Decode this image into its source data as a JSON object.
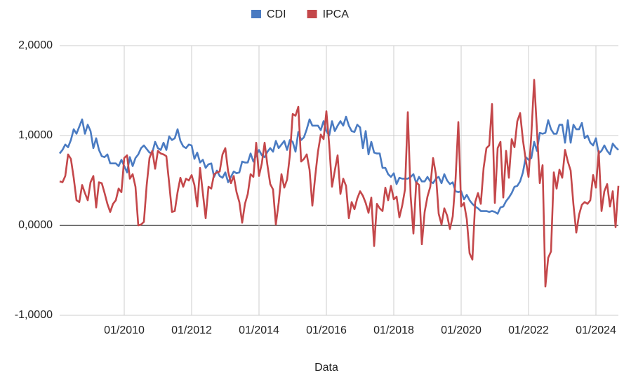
{
  "chart_data": {
    "type": "line",
    "x_label": "Data",
    "x": [
      "02/2008",
      "03/2008",
      "04/2008",
      "05/2008",
      "06/2008",
      "07/2008",
      "08/2008",
      "09/2008",
      "10/2008",
      "11/2008",
      "12/2008",
      "01/2009",
      "02/2009",
      "03/2009",
      "04/2009",
      "05/2009",
      "06/2009",
      "07/2009",
      "08/2009",
      "09/2009",
      "10/2009",
      "11/2009",
      "12/2009",
      "01/2010",
      "02/2010",
      "03/2010",
      "04/2010",
      "05/2010",
      "06/2010",
      "07/2010",
      "08/2010",
      "09/2010",
      "10/2010",
      "11/2010",
      "12/2010",
      "01/2011",
      "02/2011",
      "03/2011",
      "04/2011",
      "05/2011",
      "06/2011",
      "07/2011",
      "08/2011",
      "09/2011",
      "10/2011",
      "11/2011",
      "12/2011",
      "01/2012",
      "02/2012",
      "03/2012",
      "04/2012",
      "05/2012",
      "06/2012",
      "07/2012",
      "08/2012",
      "09/2012",
      "10/2012",
      "11/2012",
      "12/2012",
      "01/2013",
      "02/2013",
      "03/2013",
      "04/2013",
      "05/2013",
      "06/2013",
      "07/2013",
      "08/2013",
      "09/2013",
      "10/2013",
      "11/2013",
      "12/2013",
      "01/2014",
      "02/2014",
      "03/2014",
      "04/2014",
      "05/2014",
      "06/2014",
      "07/2014",
      "08/2014",
      "09/2014",
      "10/2014",
      "11/2014",
      "12/2014",
      "01/2015",
      "02/2015",
      "03/2015",
      "04/2015",
      "05/2015",
      "06/2015",
      "07/2015",
      "08/2015",
      "09/2015",
      "10/2015",
      "11/2015",
      "12/2015",
      "01/2016",
      "02/2016",
      "03/2016",
      "04/2016",
      "05/2016",
      "06/2016",
      "07/2016",
      "08/2016",
      "09/2016",
      "10/2016",
      "11/2016",
      "12/2016",
      "01/2017",
      "02/2017",
      "03/2017",
      "04/2017",
      "05/2017",
      "06/2017",
      "07/2017",
      "08/2017",
      "09/2017",
      "10/2017",
      "11/2017",
      "12/2017",
      "01/2018",
      "02/2018",
      "03/2018",
      "04/2018",
      "05/2018",
      "06/2018",
      "07/2018",
      "08/2018",
      "09/2018",
      "10/2018",
      "11/2018",
      "12/2018",
      "01/2019",
      "02/2019",
      "03/2019",
      "04/2019",
      "05/2019",
      "06/2019",
      "07/2019",
      "08/2019",
      "09/2019",
      "10/2019",
      "11/2019",
      "12/2019",
      "01/2020",
      "02/2020",
      "03/2020",
      "04/2020",
      "05/2020",
      "06/2020",
      "07/2020",
      "08/2020",
      "09/2020",
      "10/2020",
      "11/2020",
      "12/2020",
      "01/2021",
      "02/2021",
      "03/2021",
      "04/2021",
      "05/2021",
      "06/2021",
      "07/2021",
      "08/2021",
      "09/2021",
      "10/2021",
      "11/2021",
      "12/2021",
      "01/2022",
      "02/2022",
      "03/2022",
      "04/2022",
      "05/2022",
      "06/2022",
      "07/2022",
      "08/2022",
      "09/2022",
      "10/2022",
      "11/2022",
      "12/2022",
      "01/2023",
      "02/2023",
      "03/2023",
      "04/2023",
      "05/2023",
      "06/2023",
      "07/2023",
      "08/2023",
      "09/2023",
      "10/2023",
      "11/2023",
      "12/2023",
      "01/2024",
      "02/2024",
      "03/2024",
      "04/2024",
      "05/2024",
      "06/2024",
      "07/2024",
      "08/2024",
      "09/2024"
    ],
    "series": [
      {
        "name": "CDI",
        "color": "#4a7bc2",
        "values": [
          0.8,
          0.84,
          0.9,
          0.87,
          0.95,
          1.07,
          1.02,
          1.1,
          1.18,
          1.02,
          1.12,
          1.05,
          0.86,
          0.97,
          0.84,
          0.77,
          0.76,
          0.79,
          0.69,
          0.69,
          0.69,
          0.66,
          0.73,
          0.66,
          0.59,
          0.76,
          0.66,
          0.75,
          0.79,
          0.86,
          0.89,
          0.85,
          0.81,
          0.81,
          0.93,
          0.86,
          0.84,
          0.92,
          0.84,
          0.99,
          0.95,
          0.97,
          1.07,
          0.94,
          0.88,
          0.86,
          0.9,
          0.89,
          0.74,
          0.81,
          0.7,
          0.73,
          0.64,
          0.68,
          0.69,
          0.54,
          0.61,
          0.55,
          0.53,
          0.59,
          0.48,
          0.54,
          0.6,
          0.58,
          0.59,
          0.71,
          0.7,
          0.7,
          0.8,
          0.71,
          0.78,
          0.84,
          0.78,
          0.76,
          0.82,
          0.86,
          0.82,
          0.94,
          0.86,
          0.9,
          0.94,
          0.84,
          0.95,
          0.93,
          0.82,
          1.04,
          0.95,
          0.98,
          1.07,
          1.18,
          1.11,
          1.11,
          1.11,
          1.06,
          1.16,
          1.05,
          1.0,
          1.16,
          1.05,
          1.11,
          1.16,
          1.11,
          1.21,
          1.11,
          1.05,
          1.04,
          1.12,
          1.09,
          0.86,
          1.05,
          0.79,
          0.93,
          0.81,
          0.8,
          0.8,
          0.64,
          0.64,
          0.57,
          0.54,
          0.58,
          0.46,
          0.53,
          0.52,
          0.52,
          0.52,
          0.54,
          0.57,
          0.47,
          0.54,
          0.49,
          0.49,
          0.54,
          0.49,
          0.47,
          0.52,
          0.54,
          0.47,
          0.57,
          0.5,
          0.46,
          0.48,
          0.38,
          0.37,
          0.38,
          0.29,
          0.34,
          0.28,
          0.24,
          0.21,
          0.19,
          0.16,
          0.16,
          0.16,
          0.15,
          0.16,
          0.15,
          0.13,
          0.2,
          0.21,
          0.27,
          0.31,
          0.36,
          0.43,
          0.44,
          0.49,
          0.59,
          0.76,
          0.73,
          0.75,
          0.93,
          0.83,
          1.03,
          1.02,
          1.03,
          1.17,
          1.07,
          1.02,
          1.02,
          1.12,
          1.12,
          0.92,
          1.17,
          0.92,
          1.12,
          1.07,
          1.07,
          1.14,
          0.97,
          1.0,
          0.92,
          0.89,
          0.97,
          0.8,
          0.83,
          0.89,
          0.83,
          0.79,
          0.91,
          0.87,
          0.84
        ]
      },
      {
        "name": "IPCA",
        "color": "#c4474a",
        "values": [
          0.49,
          0.48,
          0.55,
          0.79,
          0.74,
          0.53,
          0.28,
          0.26,
          0.45,
          0.36,
          0.28,
          0.48,
          0.55,
          0.2,
          0.48,
          0.47,
          0.36,
          0.24,
          0.15,
          0.24,
          0.28,
          0.41,
          0.37,
          0.75,
          0.78,
          0.52,
          0.57,
          0.43,
          0.0,
          0.01,
          0.04,
          0.45,
          0.75,
          0.83,
          0.63,
          0.83,
          0.8,
          0.79,
          0.77,
          0.47,
          0.15,
          0.16,
          0.37,
          0.53,
          0.43,
          0.52,
          0.5,
          0.56,
          0.45,
          0.21,
          0.64,
          0.36,
          0.08,
          0.43,
          0.41,
          0.57,
          0.59,
          0.6,
          0.79,
          0.86,
          0.6,
          0.47,
          0.55,
          0.37,
          0.26,
          0.03,
          0.24,
          0.35,
          0.57,
          0.54,
          0.92,
          0.55,
          0.69,
          0.92,
          0.67,
          0.46,
          0.4,
          0.01,
          0.25,
          0.57,
          0.42,
          0.51,
          0.78,
          1.24,
          1.22,
          1.32,
          0.71,
          0.74,
          0.79,
          0.62,
          0.22,
          0.54,
          0.82,
          1.01,
          0.96,
          1.27,
          0.9,
          0.43,
          0.61,
          0.78,
          0.35,
          0.52,
          0.44,
          0.08,
          0.26,
          0.18,
          0.3,
          0.38,
          0.33,
          0.25,
          0.14,
          0.31,
          -0.23,
          0.24,
          0.19,
          0.16,
          0.42,
          0.28,
          0.44,
          0.29,
          0.32,
          0.09,
          0.22,
          0.4,
          1.26,
          0.33,
          -0.09,
          0.48,
          0.45,
          -0.21,
          0.15,
          0.32,
          0.43,
          0.75,
          0.57,
          0.13,
          0.01,
          0.19,
          0.11,
          -0.04,
          0.1,
          0.51,
          1.15,
          0.21,
          0.25,
          0.07,
          -0.31,
          -0.38,
          0.26,
          0.36,
          0.24,
          0.64,
          0.86,
          0.89,
          1.35,
          0.25,
          0.86,
          0.93,
          0.31,
          0.83,
          0.53,
          0.96,
          0.87,
          1.16,
          1.25,
          0.95,
          0.73,
          0.54,
          1.01,
          1.62,
          1.06,
          0.47,
          0.67,
          -0.68,
          -0.36,
          -0.29,
          0.59,
          0.41,
          0.62,
          0.53,
          0.84,
          0.71,
          0.61,
          0.23,
          -0.08,
          0.12,
          0.23,
          0.26,
          0.24,
          0.28,
          0.56,
          0.42,
          0.83,
          0.16,
          0.38,
          0.46,
          0.21,
          0.38,
          -0.02,
          0.44
        ]
      }
    ],
    "xlim": [
      "02/2008",
      "09/2024"
    ],
    "xticks": [
      "01/2010",
      "01/2012",
      "01/2014",
      "01/2016",
      "01/2018",
      "01/2020",
      "01/2022",
      "01/2024"
    ],
    "ylim": [
      -1,
      2
    ],
    "yticks": [
      {
        "value": -1,
        "label": "-1,0000"
      },
      {
        "value": 0,
        "label": "0,0000"
      },
      {
        "value": 1,
        "label": "1,0000"
      },
      {
        "value": 2,
        "label": "2,0000"
      }
    ],
    "grid": true,
    "legend": "top"
  }
}
